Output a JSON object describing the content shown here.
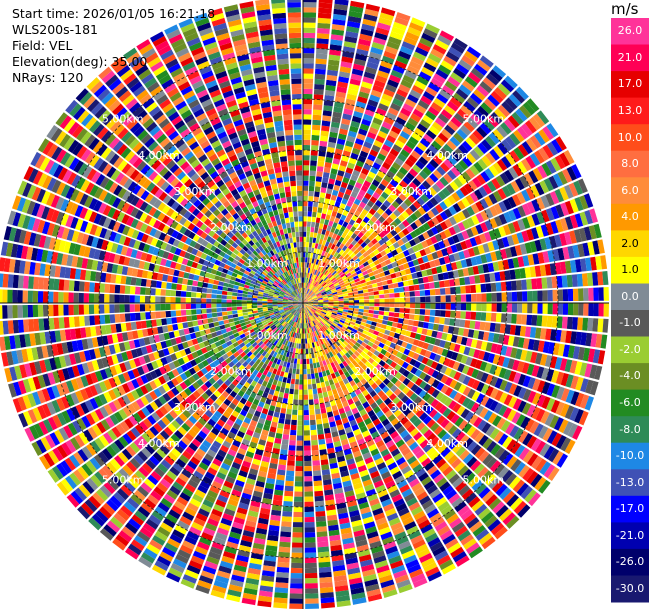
{
  "header": {
    "start_time": "Start time: 2026/01/05 16:21:18",
    "instrument": "WLS200s-181",
    "field": "Field: VEL",
    "elevation": "Elevation(deg): 35.00",
    "nrays": "NRays: 120"
  },
  "chart_data": {
    "type": "heatmap",
    "projection": "polar PPI",
    "field": "VEL",
    "elevation_deg": 35.0,
    "n_rays": 120,
    "range_rings_km": [
      1.0,
      2.0,
      3.0,
      4.0,
      5.0
    ],
    "range_ring_labels": [
      "1.00km",
      "2.00km",
      "3.00km",
      "4.00km",
      "5.00km"
    ],
    "max_range_km": 6.0,
    "colorbar": {
      "unit": "m/s",
      "tick_labels": [
        "26.0",
        "21.0",
        "17.0",
        "13.0",
        "10.0",
        "8.0",
        "6.0",
        "4.0",
        "2.0",
        "1.0",
        "0.0",
        "-1.0",
        "-2.0",
        "-4.0",
        "-6.0",
        "-8.0",
        "-10.0",
        "-13.0",
        "-17.0",
        "-21.0",
        "-26.0",
        "-30.0"
      ],
      "colors": [
        "#ff3399",
        "#ff0055",
        "#e60000",
        "#ff1a1a",
        "#ff4d1a",
        "#ff6e40",
        "#ff8c3a",
        "#ff9900",
        "#ffd700",
        "#ffff00",
        "#808b96",
        "#595959",
        "#9acd32",
        "#6b8e23",
        "#228b22",
        "#2e8b57",
        "#1e88e5",
        "#3f51b5",
        "#0000ff",
        "#0000b0",
        "#00006b",
        "#191970"
      ]
    }
  }
}
